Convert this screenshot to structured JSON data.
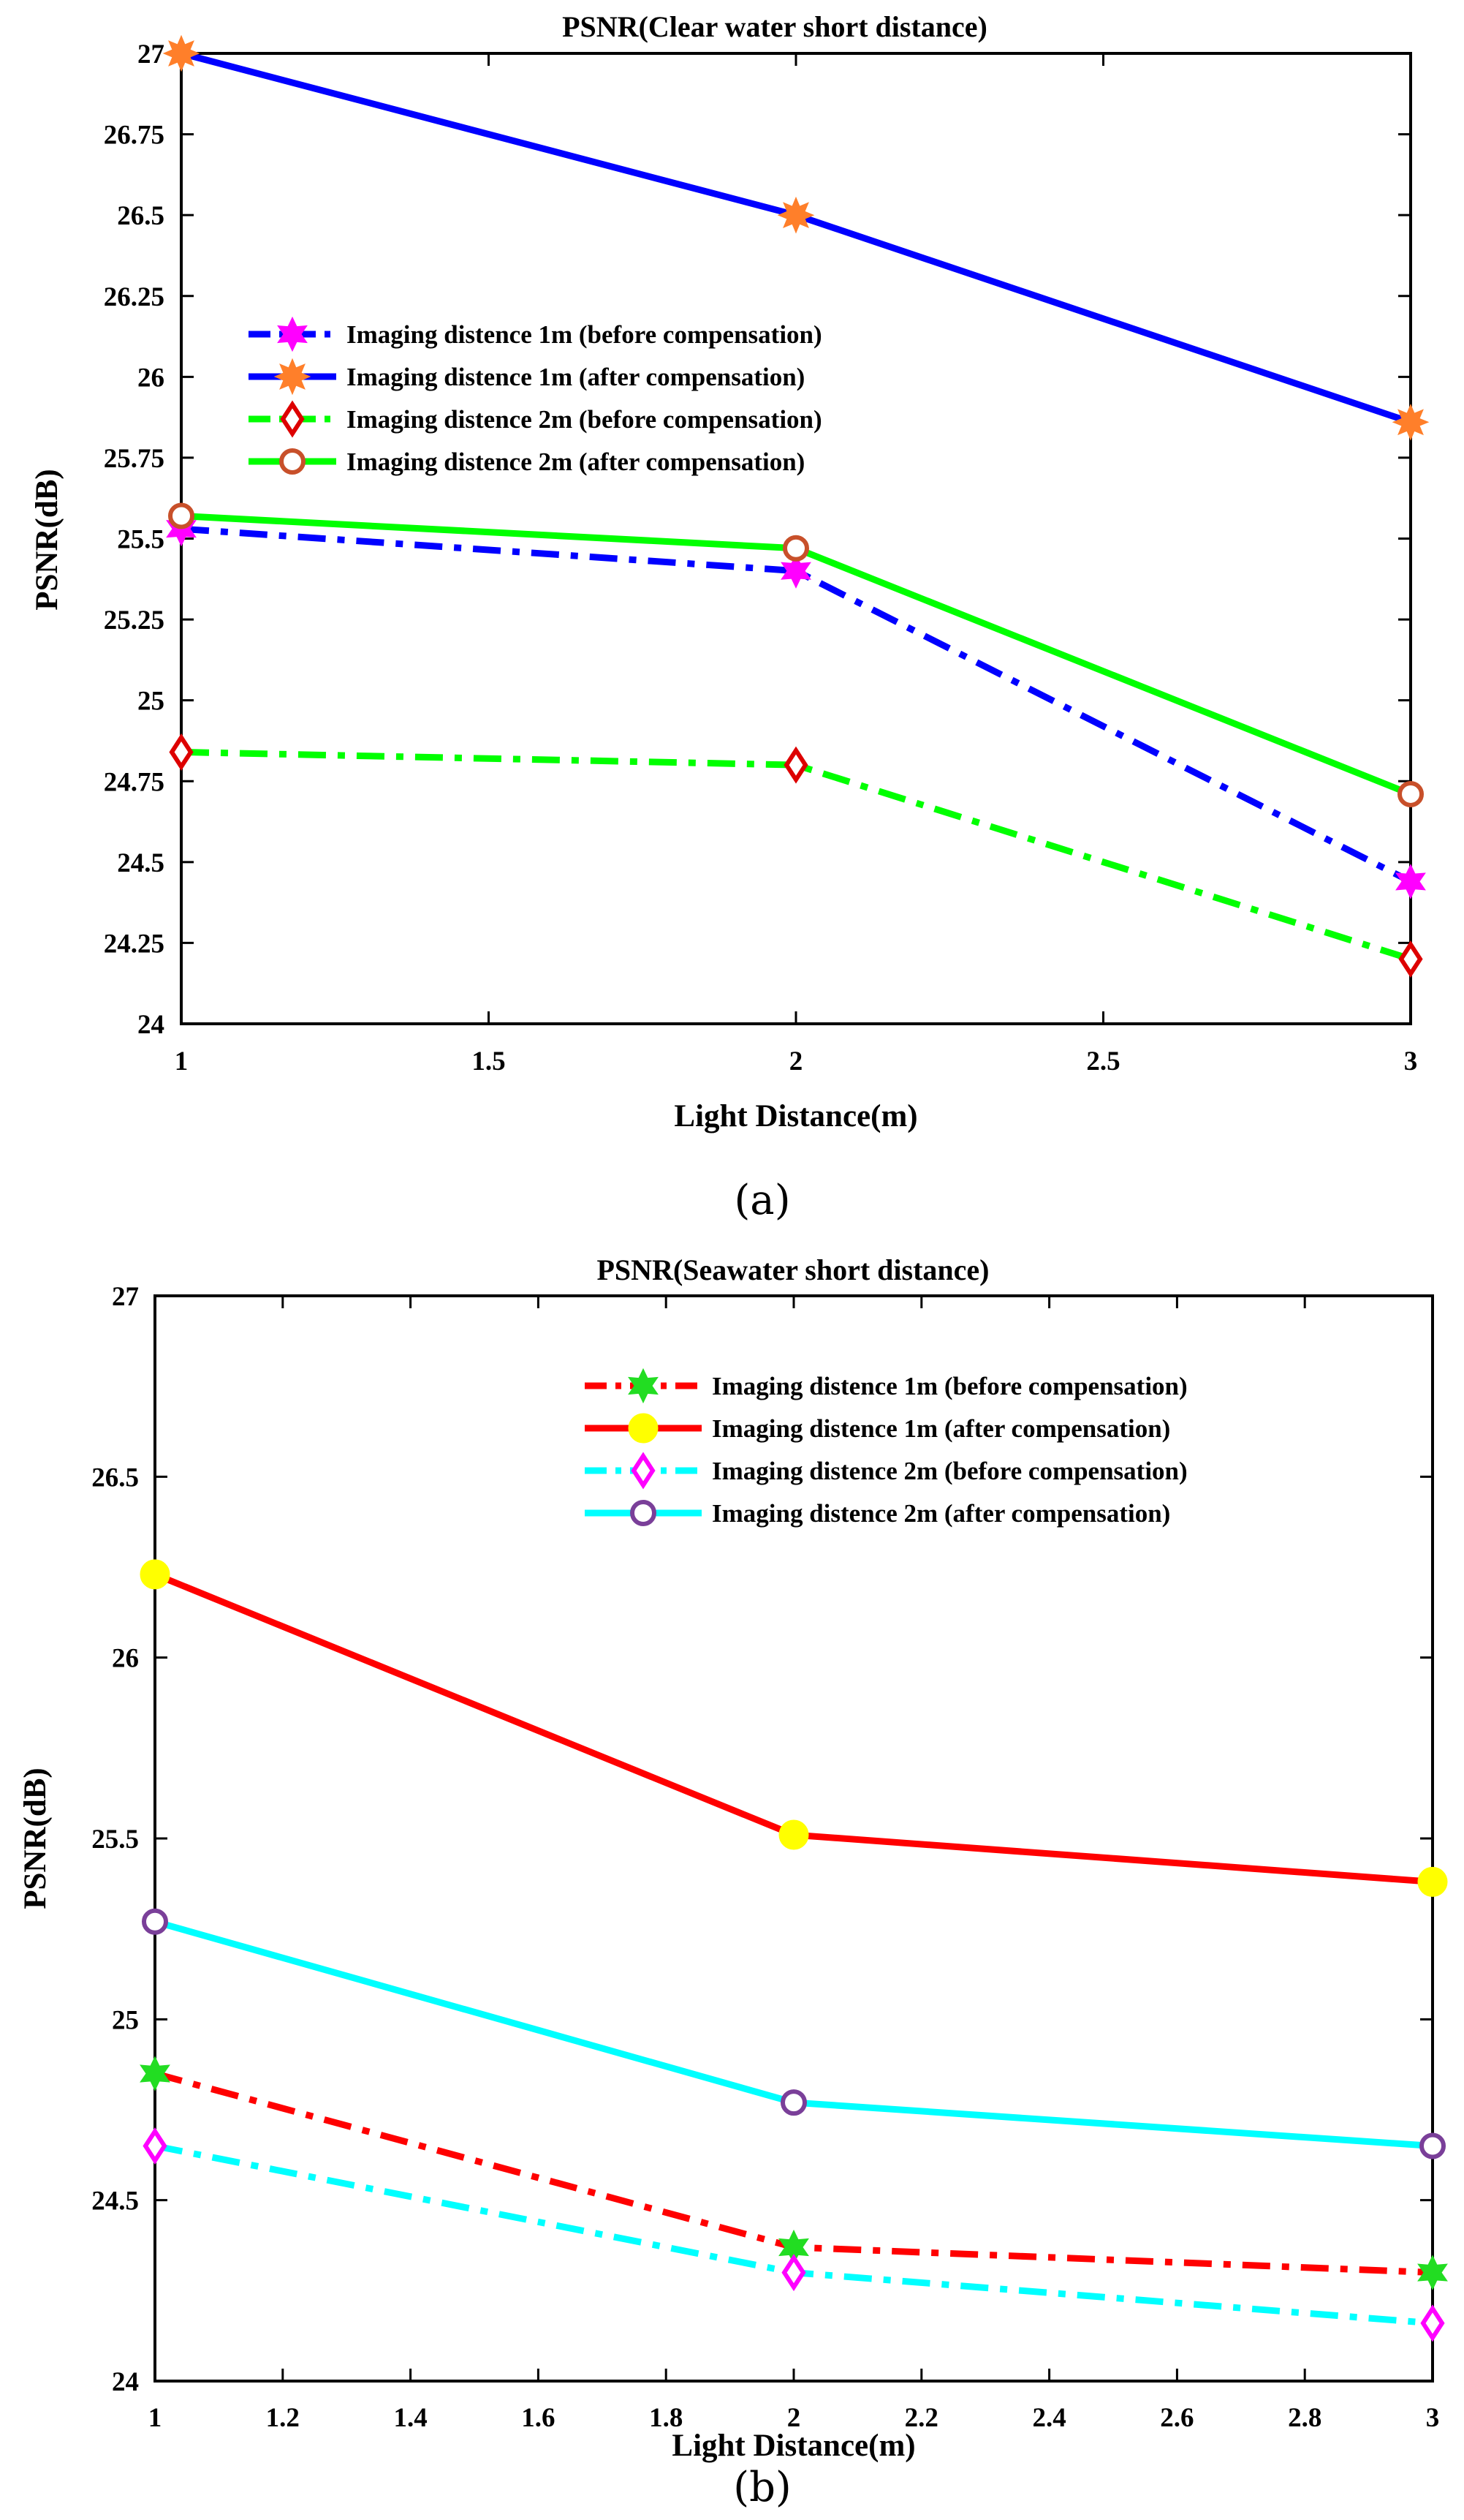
{
  "chart_data": [
    {
      "type": "line",
      "title": "PSNR(Clear water short distance)",
      "xlabel": "Light Distance(m)",
      "ylabel": "PSNR(dB)",
      "caption": "(a)",
      "xlim": [
        1,
        3
      ],
      "ylim": [
        24,
        27
      ],
      "xticks": [
        1,
        1.5,
        2,
        2.5,
        3
      ],
      "xtick_labels": [
        "1",
        "1.5",
        "2",
        "2.5",
        "3"
      ],
      "yticks": [
        24,
        24.25,
        24.5,
        24.75,
        25,
        25.25,
        25.5,
        25.75,
        26,
        26.25,
        26.5,
        26.75,
        27
      ],
      "ytick_labels": [
        "24",
        "24.25",
        "24.5",
        "24.75",
        "25",
        "25.25",
        "25.5",
        "25.75",
        "26",
        "26.25",
        "26.5",
        "26.75",
        "27"
      ],
      "legend_position": "upper-left",
      "x": [
        1,
        2,
        3
      ],
      "series": [
        {
          "name": "Imaging distence 1m (before compensation)",
          "values": [
            25.53,
            25.4,
            24.44
          ],
          "line_color": "#0000ff",
          "line_style": "dashdot",
          "marker": "hexagram",
          "marker_color": "#ff00ff"
        },
        {
          "name": "Imaging distence 1m (after compensation)",
          "values": [
            27.0,
            26.5,
            25.86
          ],
          "line_color": "#0000ff",
          "line_style": "solid",
          "marker": "asterisk",
          "marker_color": "#ff7f2a"
        },
        {
          "name": "Imaging distence 2m (before compensation)",
          "values": [
            24.84,
            24.8,
            24.2
          ],
          "line_color": "#00ff00",
          "line_style": "dashdot",
          "marker": "diamond",
          "marker_color": "#dd0000"
        },
        {
          "name": "Imaging distence 2m (after compensation)",
          "values": [
            25.57,
            25.47,
            24.71
          ],
          "line_color": "#00ff00",
          "line_style": "solid",
          "marker": "circle",
          "marker_color": "#c8502a"
        }
      ]
    },
    {
      "type": "line",
      "title": "PSNR(Seawater short distance)",
      "xlabel": "Light Distance(m)",
      "ylabel": "PSNR(dB)",
      "caption": "(b)",
      "xlim": [
        1,
        3
      ],
      "ylim": [
        24,
        27
      ],
      "xticks": [
        1,
        1.2,
        1.4,
        1.6,
        1.8,
        2,
        2.2,
        2.4,
        2.6,
        2.8,
        3
      ],
      "xtick_labels": [
        "1",
        "1.2",
        "1.4",
        "1.6",
        "1.8",
        "2",
        "2.2",
        "2.4",
        "2.6",
        "2.8",
        "3"
      ],
      "yticks": [
        24,
        24.5,
        25,
        25.5,
        26,
        26.5,
        27
      ],
      "ytick_labels": [
        "24",
        "24.5",
        "25",
        "25.5",
        "26",
        "26.5",
        "27"
      ],
      "legend_position": "upper-right",
      "x": [
        1,
        2,
        3
      ],
      "series": [
        {
          "name": "Imaging distence 1m (before compensation)",
          "values": [
            24.85,
            24.37,
            24.3
          ],
          "line_color": "#ff0000",
          "line_style": "dashdot",
          "marker": "hexagram",
          "marker_color": "#22dd22"
        },
        {
          "name": "Imaging distence 1m (after compensation)",
          "values": [
            26.23,
            25.51,
            25.38
          ],
          "line_color": "#ff0000",
          "line_style": "solid",
          "marker": "dot",
          "marker_color": "#ffff00"
        },
        {
          "name": "Imaging distence 2m (before compensation)",
          "values": [
            24.65,
            24.3,
            24.16
          ],
          "line_color": "#00ffff",
          "line_style": "dashdot",
          "marker": "diamond",
          "marker_color": "#ff00ff"
        },
        {
          "name": "Imaging distence 2m (after compensation)",
          "values": [
            25.27,
            24.77,
            24.65
          ],
          "line_color": "#00ffff",
          "line_style": "solid",
          "marker": "circle",
          "marker_color": "#7a3f99"
        }
      ]
    }
  ]
}
